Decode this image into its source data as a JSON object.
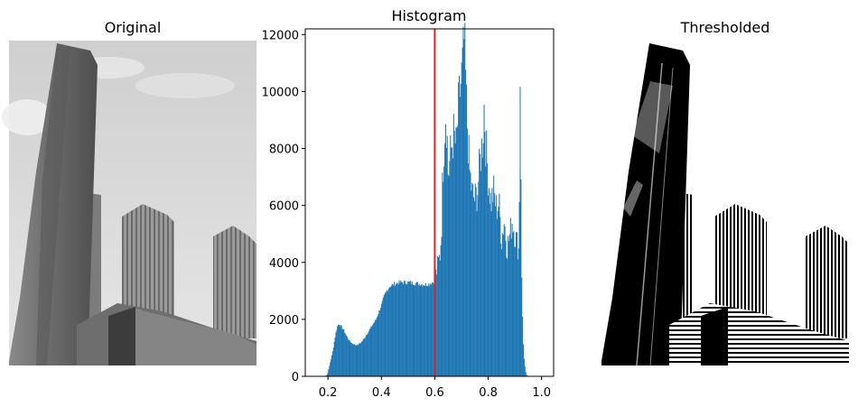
{
  "panels": {
    "original_title": "Original",
    "histogram_title": "Histogram",
    "thresholded_title": "Thresholded"
  },
  "colors": {
    "bars": "#1f77b4",
    "threshold_line": "#d62728",
    "sky": "#c8c8c8",
    "foreground": "#000000"
  },
  "chart_data": {
    "type": "bar",
    "title": "Histogram",
    "xlabel": "",
    "ylabel": "",
    "xlim": [
      0.115,
      1.045
    ],
    "ylim": [
      0,
      12200
    ],
    "xticks": [
      0.2,
      0.4,
      0.6,
      0.8,
      1.0
    ],
    "xtick_labels": [
      "0.2",
      "0.4",
      "0.6",
      "0.8",
      "1.0"
    ],
    "yticks": [
      0,
      2000,
      4000,
      6000,
      8000,
      10000,
      12000
    ],
    "ytick_labels": [
      "0",
      "2000",
      "4000",
      "6000",
      "8000",
      "10000",
      "12000"
    ],
    "threshold": 0.6,
    "bin_width": 0.003,
    "envelope": [
      [
        0.18,
        0
      ],
      [
        0.195,
        30
      ],
      [
        0.2,
        150
      ],
      [
        0.205,
        350
      ],
      [
        0.21,
        550
      ],
      [
        0.215,
        750
      ],
      [
        0.22,
        1000
      ],
      [
        0.225,
        1300
      ],
      [
        0.23,
        1550
      ],
      [
        0.235,
        1750
      ],
      [
        0.24,
        1850
      ],
      [
        0.245,
        1800
      ],
      [
        0.25,
        1750
      ],
      [
        0.26,
        1600
      ],
      [
        0.27,
        1400
      ],
      [
        0.28,
        1250
      ],
      [
        0.29,
        1160
      ],
      [
        0.3,
        1110
      ],
      [
        0.31,
        1100
      ],
      [
        0.32,
        1160
      ],
      [
        0.33,
        1250
      ],
      [
        0.34,
        1400
      ],
      [
        0.35,
        1550
      ],
      [
        0.36,
        1700
      ],
      [
        0.37,
        1850
      ],
      [
        0.38,
        2000
      ],
      [
        0.39,
        2250
      ],
      [
        0.4,
        2500
      ],
      [
        0.41,
        2800
      ],
      [
        0.42,
        3000
      ],
      [
        0.43,
        3150
      ],
      [
        0.44,
        3200
      ],
      [
        0.45,
        3250
      ],
      [
        0.47,
        3300
      ],
      [
        0.5,
        3300
      ],
      [
        0.52,
        3280
      ],
      [
        0.54,
        3250
      ],
      [
        0.56,
        3220
      ],
      [
        0.58,
        3250
      ],
      [
        0.6,
        3350
      ],
      [
        0.62,
        4300
      ],
      [
        0.625,
        5200
      ],
      [
        0.63,
        7200
      ],
      [
        0.64,
        9300
      ],
      [
        0.645,
        8800
      ],
      [
        0.65,
        7000
      ],
      [
        0.66,
        7900
      ],
      [
        0.67,
        8500
      ],
      [
        0.68,
        8000
      ],
      [
        0.69,
        9600
      ],
      [
        0.7,
        10500
      ],
      [
        0.705,
        11000
      ],
      [
        0.71,
        11800
      ],
      [
        0.715,
        10600
      ],
      [
        0.72,
        9100
      ],
      [
        0.73,
        7200
      ],
      [
        0.74,
        6400
      ],
      [
        0.75,
        6200
      ],
      [
        0.76,
        6500
      ],
      [
        0.77,
        7600
      ],
      [
        0.78,
        8400
      ],
      [
        0.785,
        9600
      ],
      [
        0.79,
        8300
      ],
      [
        0.8,
        7000
      ],
      [
        0.81,
        6100
      ],
      [
        0.82,
        6500
      ],
      [
        0.83,
        5900
      ],
      [
        0.84,
        6100
      ],
      [
        0.85,
        4800
      ],
      [
        0.86,
        5500
      ],
      [
        0.87,
        4500
      ],
      [
        0.88,
        4900
      ],
      [
        0.89,
        5500
      ],
      [
        0.9,
        5000
      ],
      [
        0.91,
        4600
      ],
      [
        0.915,
        4400
      ],
      [
        0.92,
        11200
      ],
      [
        0.925,
        3500
      ],
      [
        0.93,
        1500
      ],
      [
        0.935,
        500
      ],
      [
        0.94,
        150
      ],
      [
        0.945,
        30
      ],
      [
        0.95,
        0
      ]
    ]
  }
}
